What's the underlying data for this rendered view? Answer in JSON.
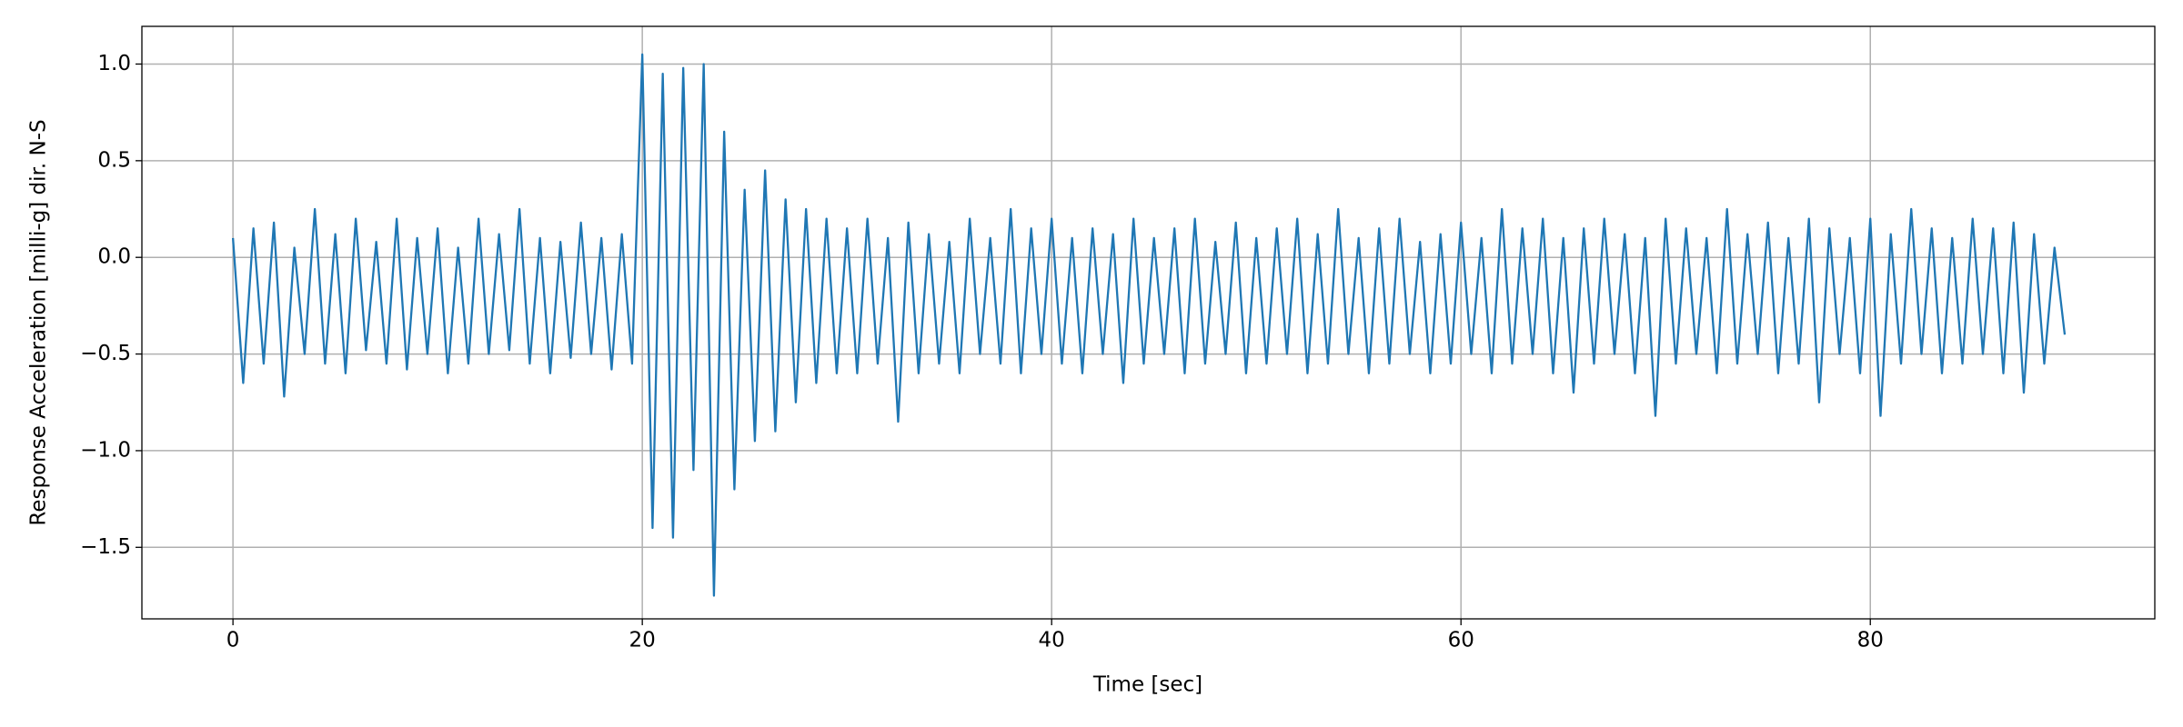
{
  "chart_data": {
    "type": "line",
    "xlabel": "Time [sec]",
    "ylabel": "Response Acceleration [milli-g] dir. N-S",
    "color": "#1f77b4",
    "grid": true,
    "xlim": [
      -4.45,
      93.9
    ],
    "ylim": [
      -1.87,
      1.195
    ],
    "xticks": [
      0,
      20,
      40,
      60,
      80
    ],
    "yticks": [
      {
        "value": 1.0,
        "label": "1.0"
      },
      {
        "value": 0.5,
        "label": "0.5"
      },
      {
        "value": 0.0,
        "label": "0.0"
      },
      {
        "value": -0.5,
        "label": "−0.5"
      },
      {
        "value": -1.0,
        "label": "−1.0"
      },
      {
        "value": -1.5,
        "label": "−1.5"
      }
    ],
    "x": [
      0,
      0.5,
      1,
      1.5,
      2,
      2.5,
      3,
      3.5,
      4,
      4.5,
      5,
      5.5,
      6,
      6.5,
      7,
      7.5,
      8,
      8.5,
      9,
      9.5,
      10,
      10.5,
      11,
      11.5,
      12,
      12.5,
      13,
      13.5,
      14,
      14.5,
      15,
      15.5,
      16,
      16.5,
      17,
      17.5,
      18,
      18.5,
      19,
      19.5,
      20,
      20.5,
      21,
      21.5,
      22,
      22.5,
      23,
      23.5,
      24,
      24.5,
      25,
      25.5,
      26,
      26.5,
      27,
      27.5,
      28,
      28.5,
      29,
      29.5,
      30,
      30.5,
      31,
      31.5,
      32,
      32.5,
      33,
      33.5,
      34,
      34.5,
      35,
      35.5,
      36,
      36.5,
      37,
      37.5,
      38,
      38.5,
      39,
      39.5,
      40,
      40.5,
      41,
      41.5,
      42,
      42.5,
      43,
      43.5,
      44,
      44.5,
      45,
      45.5,
      46,
      46.5,
      47,
      47.5,
      48,
      48.5,
      49,
      49.5,
      50,
      50.5,
      51,
      51.5,
      52,
      52.5,
      53,
      53.5,
      54,
      54.5,
      55,
      55.5,
      56,
      56.5,
      57,
      57.5,
      58,
      58.5,
      59,
      59.5,
      60,
      60.5,
      61,
      61.5,
      62,
      62.5,
      63,
      63.5,
      64,
      64.5,
      65,
      65.5,
      66,
      66.5,
      67,
      67.5,
      68,
      68.5,
      69,
      69.5,
      70,
      70.5,
      71,
      71.5,
      72,
      72.5,
      73,
      73.5,
      74,
      74.5,
      75,
      75.5,
      76,
      76.5,
      77,
      77.5,
      78,
      78.5,
      79,
      79.5,
      80,
      80.5,
      81,
      81.5,
      82,
      82.5,
      83,
      83.5,
      84,
      84.5,
      85,
      85.5,
      86,
      86.5,
      87,
      87.5,
      88,
      88.5,
      89,
      89.5
    ],
    "values": [
      0.1,
      -0.65,
      0.15,
      -0.55,
      0.18,
      -0.72,
      0.05,
      -0.5,
      0.25,
      -0.55,
      0.12,
      -0.6,
      0.2,
      -0.48,
      0.08,
      -0.55,
      0.2,
      -0.58,
      0.1,
      -0.5,
      0.15,
      -0.6,
      0.05,
      -0.55,
      0.2,
      -0.5,
      0.12,
      -0.48,
      0.25,
      -0.55,
      0.1,
      -0.6,
      0.08,
      -0.52,
      0.18,
      -0.5,
      0.1,
      -0.58,
      0.12,
      -0.55,
      1.05,
      -1.4,
      0.95,
      -1.45,
      0.98,
      -1.1,
      1.0,
      -1.75,
      0.65,
      -1.2,
      0.35,
      -0.95,
      0.45,
      -0.9,
      0.3,
      -0.75,
      0.25,
      -0.65,
      0.2,
      -0.6,
      0.15,
      -0.6,
      0.2,
      -0.55,
      0.1,
      -0.85,
      0.18,
      -0.6,
      0.12,
      -0.55,
      0.08,
      -0.6,
      0.2,
      -0.5,
      0.1,
      -0.55,
      0.25,
      -0.6,
      0.15,
      -0.5,
      0.2,
      -0.55,
      0.1,
      -0.6,
      0.15,
      -0.5,
      0.12,
      -0.65,
      0.2,
      -0.55,
      0.1,
      -0.5,
      0.15,
      -0.6,
      0.2,
      -0.55,
      0.08,
      -0.5,
      0.18,
      -0.6,
      0.1,
      -0.55,
      0.15,
      -0.5,
      0.2,
      -0.6,
      0.12,
      -0.55,
      0.25,
      -0.5,
      0.1,
      -0.6,
      0.15,
      -0.55,
      0.2,
      -0.5,
      0.08,
      -0.6,
      0.12,
      -0.55,
      0.18,
      -0.5,
      0.1,
      -0.6,
      0.25,
      -0.55,
      0.15,
      -0.5,
      0.2,
      -0.6,
      0.1,
      -0.7,
      0.15,
      -0.55,
      0.2,
      -0.5,
      0.12,
      -0.6,
      0.1,
      -0.82,
      0.2,
      -0.55,
      0.15,
      -0.5,
      0.1,
      -0.6,
      0.25,
      -0.55,
      0.12,
      -0.5,
      0.18,
      -0.6,
      0.1,
      -0.55,
      0.2,
      -0.75,
      0.15,
      -0.5,
      0.1,
      -0.6,
      0.2,
      -0.82,
      0.12,
      -0.55,
      0.25,
      -0.5,
      0.15,
      -0.6,
      0.1,
      -0.55,
      0.2,
      -0.5,
      0.15,
      -0.6,
      0.18,
      -0.7,
      0.12,
      -0.55,
      0.05,
      -0.4
    ]
  }
}
